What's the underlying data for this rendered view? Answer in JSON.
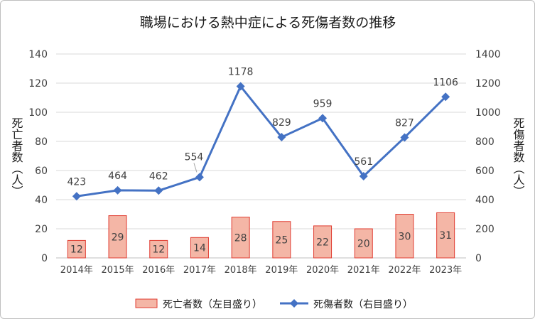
{
  "chart_data": {
    "type": "bar+line",
    "title": "職場における熱中症による死傷者数の推移",
    "categories": [
      "2014年",
      "2015年",
      "2016年",
      "2017年",
      "2018年",
      "2019年",
      "2020年",
      "2021年",
      "2022年",
      "2023年"
    ],
    "series": [
      {
        "name": "死亡者数（左目盛り）",
        "type": "bar",
        "axis": "left",
        "color": "#f4b6a6",
        "stroke": "#e03c31",
        "values": [
          12,
          29,
          12,
          14,
          28,
          25,
          22,
          20,
          30,
          31
        ]
      },
      {
        "name": "死傷者数（右目盛り）",
        "type": "line",
        "axis": "right",
        "color": "#4472c4",
        "marker": "diamond",
        "values": [
          423,
          464,
          462,
          554,
          1178,
          829,
          959,
          561,
          827,
          1106
        ]
      }
    ],
    "left_axis": {
      "label": "死亡者数（人）",
      "ylim": [
        0,
        140
      ],
      "ticks": [
        "0",
        "20",
        "40",
        "60",
        "80",
        "100",
        "120",
        "140"
      ]
    },
    "right_axis": {
      "label": "死傷者数（人）",
      "ylim": [
        0,
        1400
      ],
      "ticks": [
        "0",
        "200",
        "400",
        "600",
        "800",
        "1000",
        "1200",
        "1400"
      ]
    },
    "grid": true,
    "legend": "bottom"
  }
}
